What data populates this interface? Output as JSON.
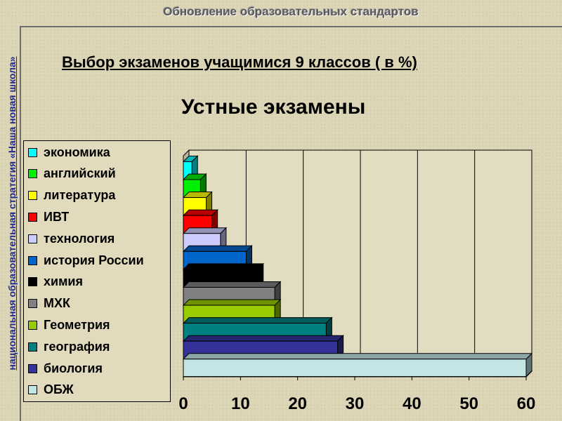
{
  "header": {
    "title": "Обновление образовательных стандартов"
  },
  "sidebar": {
    "text": "национальная образовательная стратегия «Наша новая школа»"
  },
  "slide": {
    "title": "Выбор экзаменов учащимися 9 классов ( в %)"
  },
  "chart_data": {
    "type": "bar",
    "orientation": "horizontal",
    "three_d": true,
    "title": "Устные экзамены",
    "xlabel": "",
    "ylabel": "",
    "xlim": [
      0,
      60
    ],
    "x_ticks": [
      "0",
      "10",
      "20",
      "30",
      "40",
      "50",
      "60"
    ],
    "grid": true,
    "legend_position": "left",
    "categories": [
      "экономика",
      "английский",
      "литература",
      "ИВТ",
      "технология",
      "история России",
      "химия",
      "МХК",
      "Геометрия",
      "география",
      "биология",
      "ОБЖ"
    ],
    "values": [
      1.5,
      3,
      4,
      5,
      6.5,
      11,
      13,
      16,
      16,
      25,
      27,
      60
    ],
    "colors": [
      "#00ffff",
      "#00ee00",
      "#ffff00",
      "#ff0000",
      "#ccccff",
      "#0066cc",
      "#000000",
      "#808080",
      "#99cc00",
      "#008080",
      "#333399",
      "#c2e6e6"
    ]
  }
}
